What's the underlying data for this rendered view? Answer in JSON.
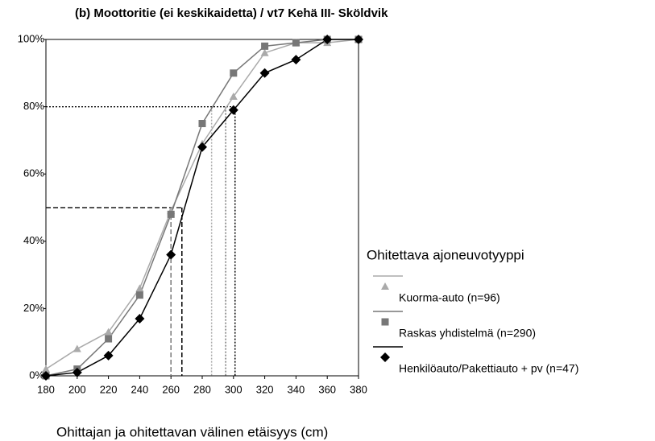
{
  "chart_data": {
    "type": "line",
    "title": "(b) Moottoritie (ei keskikaidetta) / vt7 Kehä III- Sköldvik",
    "x_label": "Ohittajan ja ohitettavan välinen etäisyys (cm)",
    "legend_title": "Ohitettava ajoneuvotyyppi",
    "legend": "right",
    "x": [
      180,
      200,
      220,
      240,
      260,
      280,
      300,
      320,
      340,
      360,
      380
    ],
    "series": [
      {
        "name": "Kuorma-auto (n=96)",
        "color": "#aaaaaa",
        "marker": "triangle",
        "values": [
          2,
          8,
          13,
          26,
          49,
          69,
          83,
          96,
          99,
          99,
          100
        ]
      },
      {
        "name": "Raskas yhdistelmä (n=290)",
        "color": "#777777",
        "marker": "square",
        "values": [
          0,
          2,
          11,
          24,
          48,
          75,
          90,
          98,
          99,
          100,
          100
        ]
      },
      {
        "name": "Henkilöauto/Pakettiauto + pv (n=47)",
        "color": "#000000",
        "marker": "diamond",
        "values": [
          0,
          1,
          6,
          17,
          36,
          68,
          79,
          90,
          94,
          100,
          100
        ]
      }
    ],
    "reference_lines": [
      {
        "y": 50,
        "x": 260,
        "color": "#777777",
        "style": "dashed"
      },
      {
        "y": 50,
        "x": 267,
        "color": "#000000",
        "style": "dashed"
      },
      {
        "y": 80,
        "x": 286,
        "color": "#aaaaaa",
        "style": "dotted"
      },
      {
        "y": 80,
        "x": 295,
        "color": "#777777",
        "style": "dotted"
      },
      {
        "y": 80,
        "x": 301,
        "color": "#000000",
        "style": "dotted"
      }
    ],
    "xlim": [
      180,
      380
    ],
    "xticks": [
      180,
      200,
      220,
      240,
      260,
      280,
      300,
      320,
      340,
      360,
      380
    ],
    "ylim": [
      0,
      100
    ],
    "yticks": [
      {
        "value": 0,
        "label": "0%"
      },
      {
        "value": 20,
        "label": "20%"
      },
      {
        "value": 40,
        "label": "40%"
      },
      {
        "value": 60,
        "label": "60%"
      },
      {
        "value": 80,
        "label": "80%"
      },
      {
        "value": 100,
        "label": "100%"
      }
    ]
  }
}
